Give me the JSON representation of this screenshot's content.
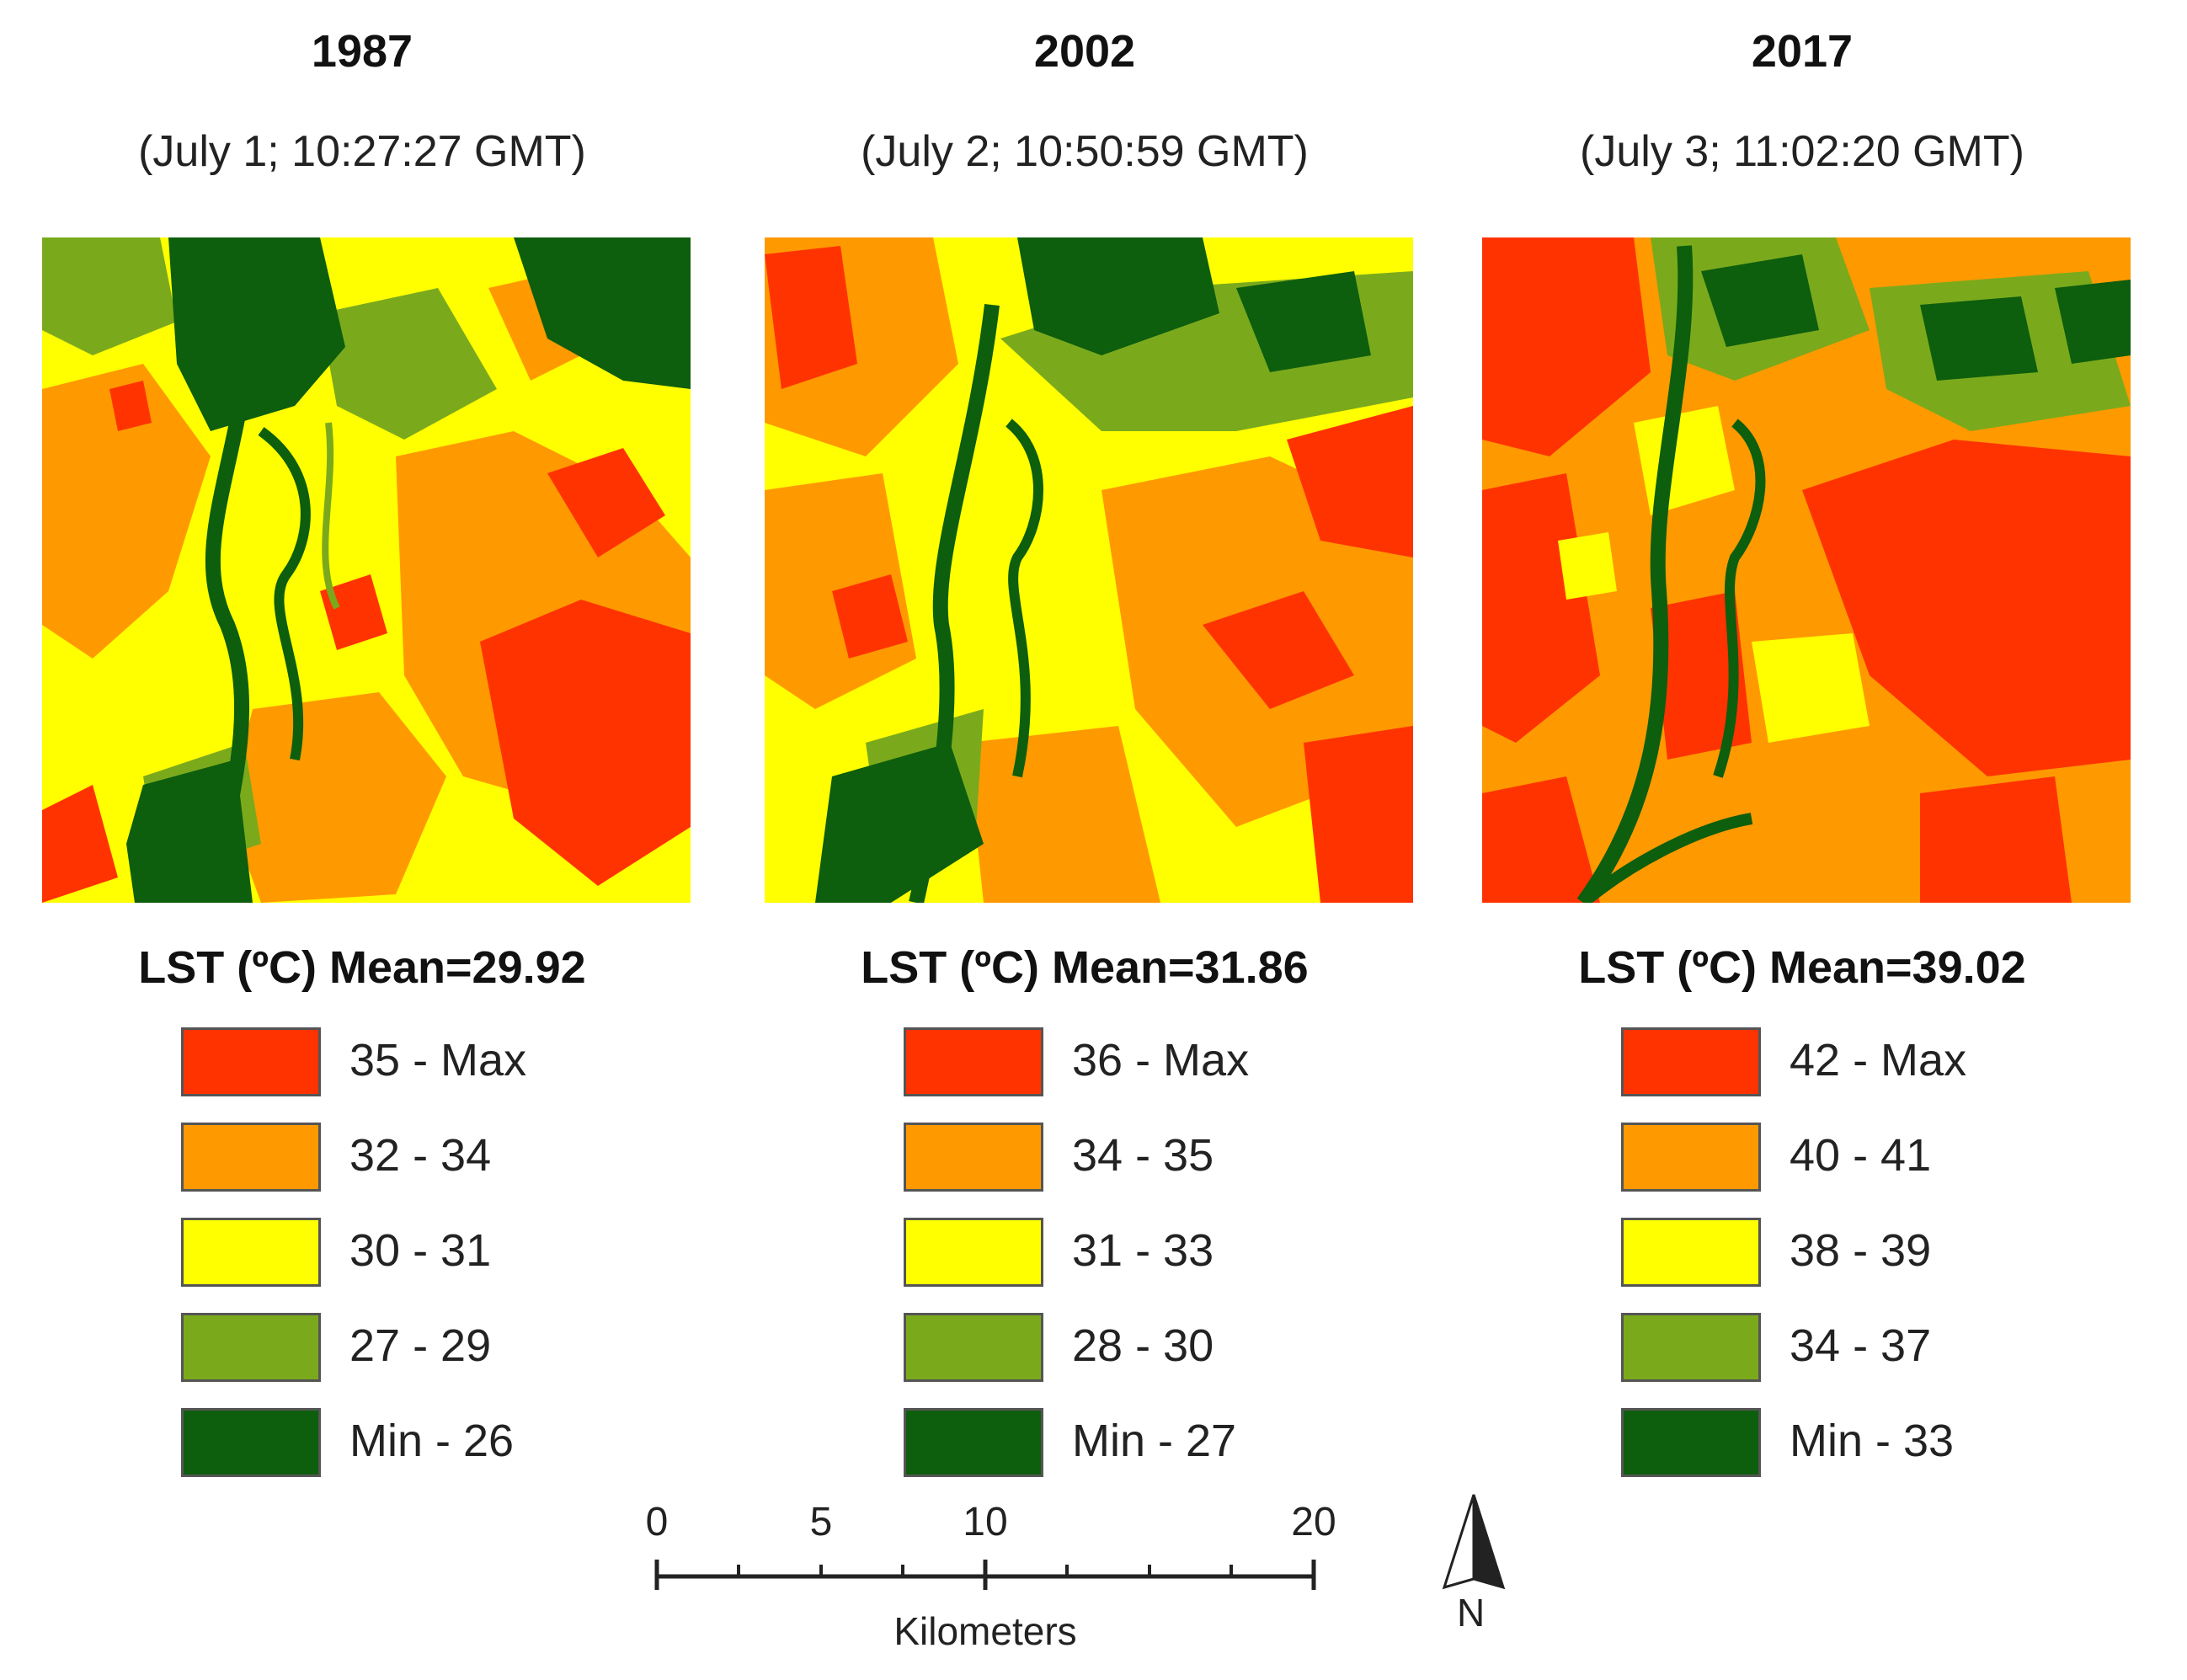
{
  "panels": [
    {
      "year": "1987",
      "datetime": "(July 1; 10:27:27 GMT)",
      "legend_title": "LST (ºC) Mean=29.92",
      "classes": [
        {
          "label": "35 - Max",
          "color": "#ff3300"
        },
        {
          "label": "32 - 34",
          "color": "#ff9900"
        },
        {
          "label": "30 - 31",
          "color": "#ffff00"
        },
        {
          "label": "27 - 29",
          "color": "#7aaa1c"
        },
        {
          "label": "Min - 26",
          "color": "#0d5e0d"
        }
      ]
    },
    {
      "year": "2002",
      "datetime": "(July 2; 10:50:59 GMT)",
      "legend_title": "LST (ºC) Mean=31.86",
      "classes": [
        {
          "label": "36 - Max",
          "color": "#ff3300"
        },
        {
          "label": "34 - 35",
          "color": "#ff9900"
        },
        {
          "label": "31 - 33",
          "color": "#ffff00"
        },
        {
          "label": "28 - 30",
          "color": "#7aaa1c"
        },
        {
          "label": "Min - 27",
          "color": "#0d5e0d"
        }
      ]
    },
    {
      "year": "2017",
      "datetime": "(July 3; 11:02:20 GMT)",
      "legend_title": "LST (ºC) Mean=39.02",
      "classes": [
        {
          "label": "42 - Max",
          "color": "#ff3300"
        },
        {
          "label": "40 - 41",
          "color": "#ff9900"
        },
        {
          "label": "38 - 39",
          "color": "#ffff00"
        },
        {
          "label": "34 - 37",
          "color": "#7aaa1c"
        },
        {
          "label": "Min - 33",
          "color": "#0d5e0d"
        }
      ]
    }
  ],
  "scale_bar": {
    "labels": [
      "0",
      "5",
      "10",
      "20"
    ],
    "units": "Kilometers"
  },
  "north_arrow": {
    "label": "N"
  }
}
